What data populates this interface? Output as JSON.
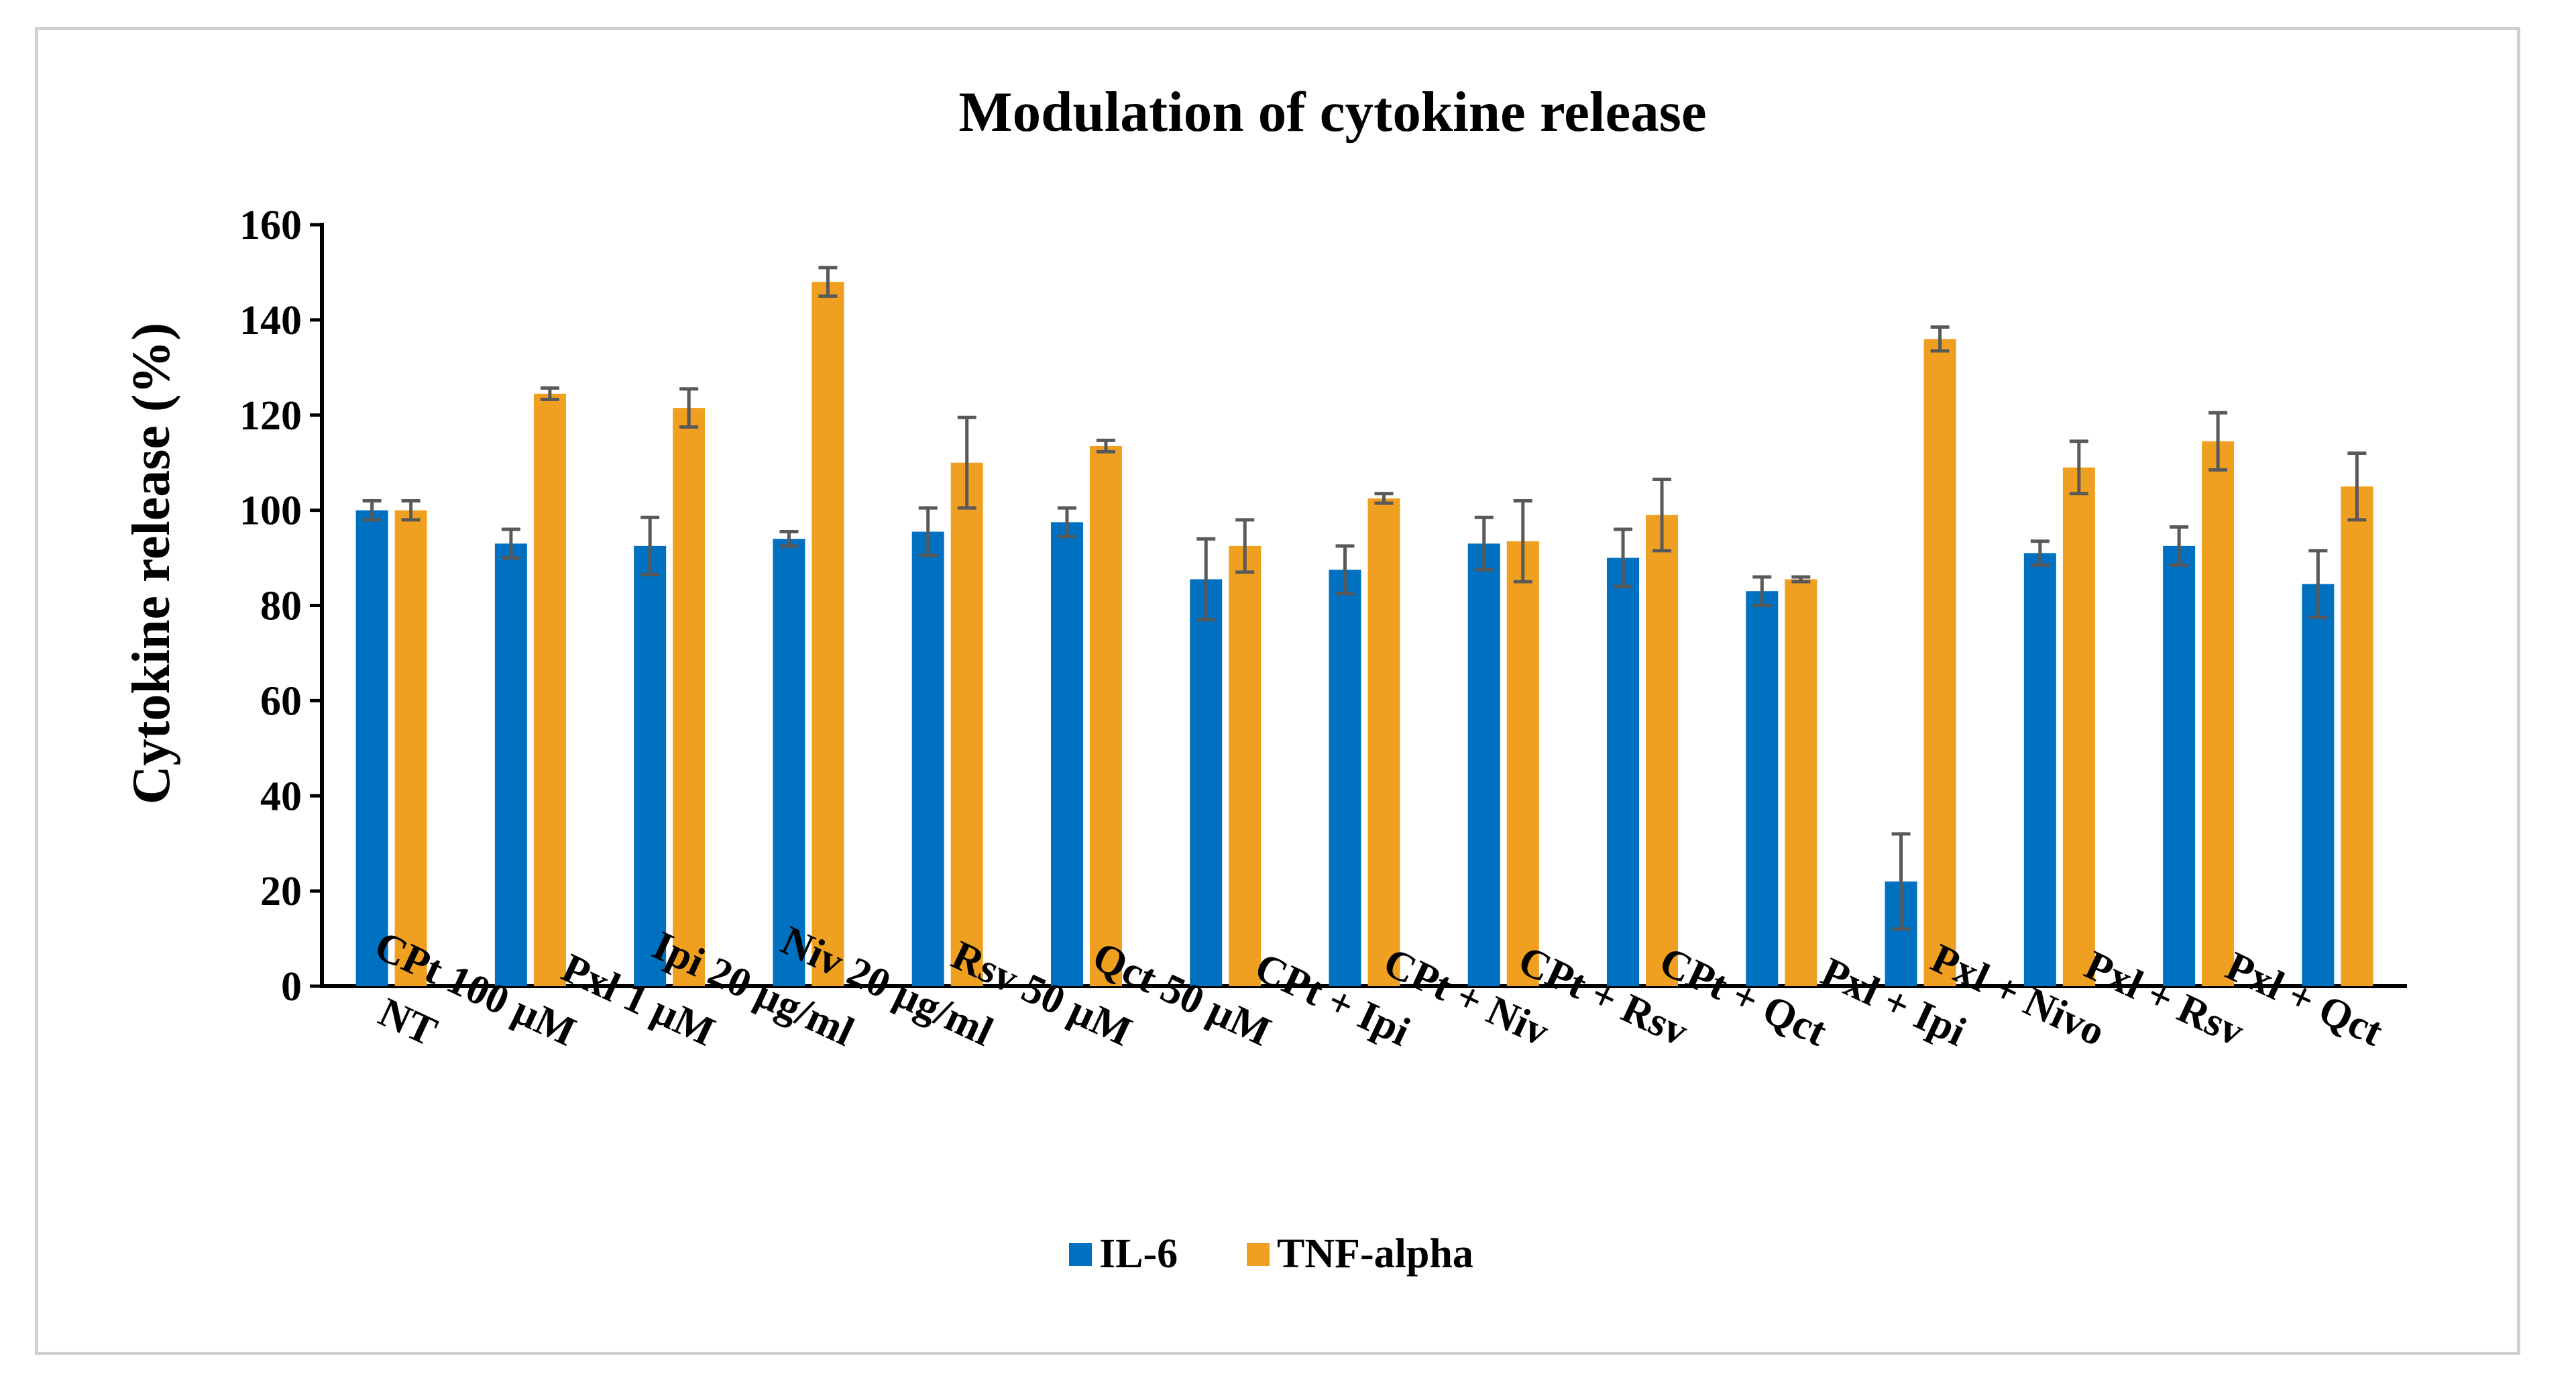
{
  "chart_data": {
    "type": "bar",
    "title": "Modulation of cytokine release",
    "xlabel": "",
    "ylabel": "Cytokine release (%)",
    "ylim": [
      0,
      160
    ],
    "yticks": [
      0,
      20,
      40,
      60,
      80,
      100,
      120,
      140,
      160
    ],
    "grid": false,
    "legend_position": "bottom-center",
    "categories": [
      "NT",
      "CPt 100 µM",
      "Pxl 1 µM",
      "Ipi 20 µg/ml",
      "Niv 20 µg/ml",
      "Rsv 50 µM",
      "Qct 50 µM",
      "CPt + Ipi",
      "CPt + Niv",
      "CPt + Rsv",
      "CPt + Qct",
      "Pxl + Ipi",
      "Pxl + Nivo",
      "Pxl + Rsv",
      "Pxl + Qct"
    ],
    "series": [
      {
        "name": "IL-6",
        "color": "#0070C0",
        "values": [
          100,
          93,
          92.5,
          94,
          95.5,
          97.5,
          85.5,
          87.5,
          93,
          90,
          83,
          22,
          91,
          92.5,
          84.5
        ],
        "errors": [
          2,
          3,
          6,
          1.5,
          5,
          3,
          8.5,
          5,
          5.5,
          6,
          3,
          10,
          2.5,
          4,
          7
        ]
      },
      {
        "name": "TNF-alpha",
        "color": "#F0A020",
        "values": [
          100,
          124.5,
          121.5,
          148,
          110,
          113.5,
          92.5,
          102.5,
          93.5,
          99,
          85.5,
          136,
          109,
          114.5,
          105
        ],
        "errors": [
          2,
          1.2,
          4,
          3,
          9.5,
          1.2,
          5.5,
          1,
          8.5,
          7.5,
          0.5,
          2.5,
          5.5,
          6,
          7
        ]
      }
    ]
  }
}
